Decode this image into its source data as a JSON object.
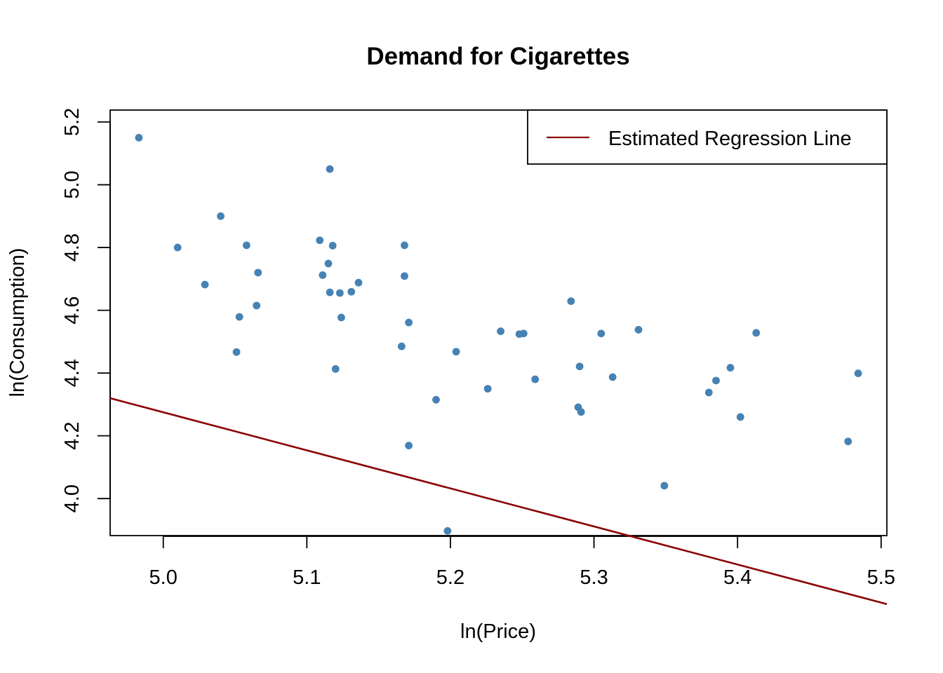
{
  "chart_data": {
    "type": "scatter",
    "title": "Demand for Cigarettes",
    "xlabel": "ln(Price)",
    "ylabel": "ln(Consumption)",
    "xlim": [
      4.963,
      5.504
    ],
    "ylim": [
      3.882,
      5.238
    ],
    "x_ticks": [
      {
        "value": 5.0,
        "label": "5.0"
      },
      {
        "value": 5.1,
        "label": "5.1"
      },
      {
        "value": 5.2,
        "label": "5.2"
      },
      {
        "value": 5.3,
        "label": "5.3"
      },
      {
        "value": 5.4,
        "label": "5.4"
      },
      {
        "value": 5.5,
        "label": "5.5"
      }
    ],
    "y_ticks": [
      {
        "value": 4.0,
        "label": "4.0"
      },
      {
        "value": 4.2,
        "label": "4.2"
      },
      {
        "value": 4.4,
        "label": "4.4"
      },
      {
        "value": 4.6,
        "label": "4.6"
      },
      {
        "value": 4.8,
        "label": "4.8"
      },
      {
        "value": 5.0,
        "label": "5.0"
      },
      {
        "value": 5.2,
        "label": "5.2"
      }
    ],
    "grid": false,
    "legend": {
      "position": "top-right",
      "entries": [
        {
          "label": "Estimated Regression Line",
          "color": "#8B0000"
        }
      ]
    },
    "point_color": "#4682B4",
    "points": [
      {
        "x": 4.983,
        "y": 5.15
      },
      {
        "x": 5.01,
        "y": 4.8
      },
      {
        "x": 5.029,
        "y": 4.682
      },
      {
        "x": 5.04,
        "y": 4.9
      },
      {
        "x": 5.051,
        "y": 4.467
      },
      {
        "x": 5.053,
        "y": 4.579
      },
      {
        "x": 5.058,
        "y": 4.807
      },
      {
        "x": 5.065,
        "y": 4.615
      },
      {
        "x": 5.066,
        "y": 4.72
      },
      {
        "x": 5.109,
        "y": 4.823
      },
      {
        "x": 5.111,
        "y": 4.712
      },
      {
        "x": 5.115,
        "y": 4.749
      },
      {
        "x": 5.116,
        "y": 5.05
      },
      {
        "x": 5.116,
        "y": 4.657
      },
      {
        "x": 5.118,
        "y": 4.806
      },
      {
        "x": 5.12,
        "y": 4.413
      },
      {
        "x": 5.123,
        "y": 4.655
      },
      {
        "x": 5.124,
        "y": 4.577
      },
      {
        "x": 5.131,
        "y": 4.659
      },
      {
        "x": 5.136,
        "y": 4.688
      },
      {
        "x": 5.166,
        "y": 4.485
      },
      {
        "x": 5.168,
        "y": 4.709
      },
      {
        "x": 5.168,
        "y": 4.807
      },
      {
        "x": 5.171,
        "y": 4.561
      },
      {
        "x": 5.171,
        "y": 4.169
      },
      {
        "x": 5.19,
        "y": 4.315
      },
      {
        "x": 5.198,
        "y": 3.897
      },
      {
        "x": 5.204,
        "y": 4.468
      },
      {
        "x": 5.226,
        "y": 4.35
      },
      {
        "x": 5.235,
        "y": 4.533
      },
      {
        "x": 5.248,
        "y": 4.524
      },
      {
        "x": 5.251,
        "y": 4.526
      },
      {
        "x": 5.259,
        "y": 4.38
      },
      {
        "x": 5.284,
        "y": 4.629
      },
      {
        "x": 5.289,
        "y": 4.291
      },
      {
        "x": 5.29,
        "y": 4.421
      },
      {
        "x": 5.291,
        "y": 4.276
      },
      {
        "x": 5.305,
        "y": 4.526
      },
      {
        "x": 5.313,
        "y": 4.387
      },
      {
        "x": 5.331,
        "y": 4.538
      },
      {
        "x": 5.349,
        "y": 4.041
      },
      {
        "x": 5.38,
        "y": 4.338
      },
      {
        "x": 5.385,
        "y": 4.376
      },
      {
        "x": 5.395,
        "y": 4.417
      },
      {
        "x": 5.402,
        "y": 4.26
      },
      {
        "x": 5.413,
        "y": 4.528
      },
      {
        "x": 5.477,
        "y": 4.182
      },
      {
        "x": 5.484,
        "y": 4.399
      }
    ],
    "regression_line": {
      "label": "Estimated Regression Line",
      "color": "#8B0000",
      "intercept": 10.34,
      "slope": -1.213
    }
  }
}
